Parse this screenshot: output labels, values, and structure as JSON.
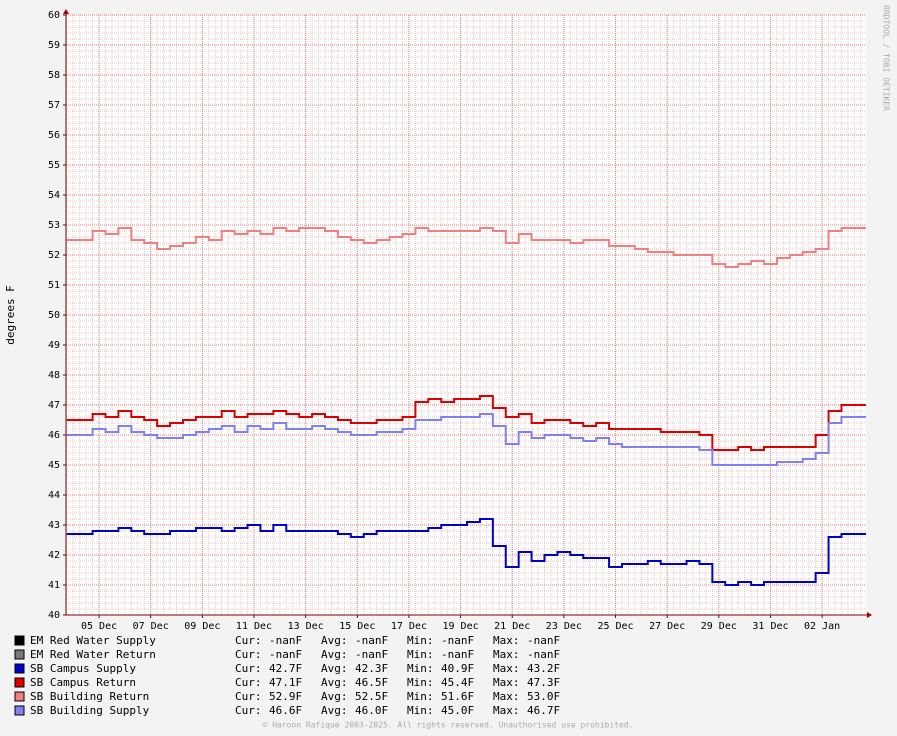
{
  "chart_data": {
    "type": "step-line",
    "y_label": "degrees F",
    "side_label": "RRDTOOL / TOBI OETIKER",
    "footer": "© Haroon Rafique 2003-2025. All rights reserved. Unauthorised use prohibited.",
    "xlim": [
      3.72,
      34.7
    ],
    "ylim": [
      40,
      60
    ],
    "yticks": [
      40,
      41,
      42,
      43,
      44,
      45,
      46,
      47,
      48,
      49,
      50,
      51,
      52,
      53,
      54,
      55,
      56,
      57,
      58,
      59,
      60
    ],
    "xticks": [
      {
        "value": 5,
        "label": "05 Dec"
      },
      {
        "value": 7,
        "label": "07 Dec"
      },
      {
        "value": 9,
        "label": "09 Dec"
      },
      {
        "value": 11,
        "label": "11 Dec"
      },
      {
        "value": 13,
        "label": "13 Dec"
      },
      {
        "value": 15,
        "label": "15 Dec"
      },
      {
        "value": 17,
        "label": "17 Dec"
      },
      {
        "value": 19,
        "label": "19 Dec"
      },
      {
        "value": 21,
        "label": "21 Dec"
      },
      {
        "value": 23,
        "label": "23 Dec"
      },
      {
        "value": 25,
        "label": "25 Dec"
      },
      {
        "value": 27,
        "label": "27 Dec"
      },
      {
        "value": 29,
        "label": "29 Dec"
      },
      {
        "value": 31,
        "label": "31 Dec"
      },
      {
        "value": 33,
        "label": "02 Jan"
      }
    ],
    "grid": true,
    "stats_labels": [
      "Cur:",
      "Avg:",
      "Min:",
      "Max:"
    ],
    "x": [
      3.75,
      4.25,
      4.75,
      5.25,
      5.75,
      6.25,
      6.75,
      7.25,
      7.75,
      8.25,
      8.75,
      9.25,
      9.75,
      10.25,
      10.75,
      11.25,
      11.75,
      12.25,
      12.75,
      13.25,
      13.75,
      14.25,
      14.75,
      15.25,
      15.75,
      16.25,
      16.75,
      17.25,
      17.75,
      18.25,
      18.75,
      19.25,
      19.75,
      20.25,
      20.75,
      21.25,
      21.75,
      22.25,
      22.75,
      23.25,
      23.75,
      24.25,
      24.75,
      25.25,
      25.75,
      26.25,
      26.75,
      27.25,
      27.75,
      28.25,
      28.75,
      29.25,
      29.75,
      30.25,
      30.75,
      31.25,
      31.75,
      32.25,
      32.75,
      33.25,
      33.75,
      34.25
    ],
    "series": [
      {
        "name": "EM Red Water Supply",
        "color": "#000000",
        "stats": [
          "-nanF",
          "-nanF",
          "-nanF",
          "-nanF"
        ],
        "values": [
          null,
          null,
          null,
          null,
          null,
          null,
          null,
          null,
          null,
          null,
          null,
          null,
          null,
          null,
          null,
          null,
          null,
          null,
          null,
          null,
          null,
          null,
          null,
          null,
          null,
          null,
          null,
          null,
          null,
          null,
          null,
          null,
          null,
          null,
          null,
          null,
          null,
          null,
          null,
          null,
          null,
          null,
          null,
          null,
          null,
          null,
          null,
          null,
          null,
          null,
          null,
          null,
          null,
          null,
          null,
          null,
          null,
          null,
          null,
          null,
          null,
          null
        ]
      },
      {
        "name": "EM Red Water Return",
        "color": "#777777",
        "stats": [
          "-nanF",
          "-nanF",
          "-nanF",
          "-nanF"
        ],
        "values": [
          null,
          null,
          null,
          null,
          null,
          null,
          null,
          null,
          null,
          null,
          null,
          null,
          null,
          null,
          null,
          null,
          null,
          null,
          null,
          null,
          null,
          null,
          null,
          null,
          null,
          null,
          null,
          null,
          null,
          null,
          null,
          null,
          null,
          null,
          null,
          null,
          null,
          null,
          null,
          null,
          null,
          null,
          null,
          null,
          null,
          null,
          null,
          null,
          null,
          null,
          null,
          null,
          null,
          null,
          null,
          null,
          null,
          null,
          null,
          null,
          null,
          null
        ]
      },
      {
        "name": "SB Campus Supply",
        "color": "#0000cc",
        "stats": [
          "42.7F",
          "42.3F",
          "40.9F",
          "43.2F"
        ],
        "values": [
          42.7,
          42.7,
          42.8,
          42.8,
          42.9,
          42.8,
          42.7,
          42.7,
          42.8,
          42.8,
          42.9,
          42.9,
          42.8,
          42.9,
          43.0,
          42.8,
          43.0,
          42.8,
          42.8,
          42.8,
          42.8,
          42.7,
          42.6,
          42.7,
          42.8,
          42.8,
          42.8,
          42.8,
          42.9,
          43.0,
          43.0,
          43.1,
          43.2,
          42.3,
          41.6,
          42.1,
          41.8,
          42.0,
          42.1,
          42.0,
          41.9,
          41.9,
          41.6,
          41.7,
          41.7,
          41.8,
          41.7,
          41.7,
          41.8,
          41.7,
          41.1,
          41.0,
          41.1,
          41.0,
          41.1,
          41.1,
          41.1,
          41.1,
          41.4,
          42.6,
          42.7,
          42.7
        ]
      },
      {
        "name": "SB Campus Return",
        "color": "#dd0000",
        "stats": [
          "47.1F",
          "46.5F",
          "45.4F",
          "47.3F"
        ],
        "values": [
          46.5,
          46.5,
          46.7,
          46.6,
          46.8,
          46.6,
          46.5,
          46.3,
          46.4,
          46.5,
          46.6,
          46.6,
          46.8,
          46.6,
          46.7,
          46.7,
          46.8,
          46.7,
          46.6,
          46.7,
          46.6,
          46.5,
          46.4,
          46.4,
          46.5,
          46.5,
          46.6,
          47.1,
          47.2,
          47.1,
          47.2,
          47.2,
          47.3,
          46.9,
          46.6,
          46.7,
          46.4,
          46.5,
          46.5,
          46.4,
          46.3,
          46.4,
          46.2,
          46.2,
          46.2,
          46.2,
          46.1,
          46.1,
          46.1,
          46.0,
          45.5,
          45.5,
          45.6,
          45.5,
          45.6,
          45.6,
          45.6,
          45.6,
          46.0,
          46.8,
          47.0,
          47.0
        ]
      },
      {
        "name": "SB Building Return",
        "color": "#f08080",
        "stats": [
          "52.9F",
          "52.5F",
          "51.6F",
          "53.0F"
        ],
        "values": [
          52.5,
          52.5,
          52.8,
          52.7,
          52.9,
          52.5,
          52.4,
          52.2,
          52.3,
          52.4,
          52.6,
          52.5,
          52.8,
          52.7,
          52.8,
          52.7,
          52.9,
          52.8,
          52.9,
          52.9,
          52.8,
          52.6,
          52.5,
          52.4,
          52.5,
          52.6,
          52.7,
          52.9,
          52.8,
          52.8,
          52.8,
          52.8,
          52.9,
          52.8,
          52.4,
          52.7,
          52.5,
          52.5,
          52.5,
          52.4,
          52.5,
          52.5,
          52.3,
          52.3,
          52.2,
          52.1,
          52.1,
          52.0,
          52.0,
          52.0,
          51.7,
          51.6,
          51.7,
          51.8,
          51.7,
          51.9,
          52.0,
          52.1,
          52.2,
          52.8,
          52.9,
          52.9
        ]
      },
      {
        "name": "SB Building Supply",
        "color": "#8080ee",
        "stats": [
          "46.6F",
          "46.0F",
          "45.0F",
          "46.7F"
        ],
        "values": [
          46.0,
          46.0,
          46.2,
          46.1,
          46.3,
          46.1,
          46.0,
          45.9,
          45.9,
          46.0,
          46.1,
          46.2,
          46.3,
          46.1,
          46.3,
          46.2,
          46.4,
          46.2,
          46.2,
          46.3,
          46.2,
          46.1,
          46.0,
          46.0,
          46.1,
          46.1,
          46.2,
          46.5,
          46.5,
          46.6,
          46.6,
          46.6,
          46.7,
          46.3,
          45.7,
          46.1,
          45.9,
          46.0,
          46.0,
          45.9,
          45.8,
          45.9,
          45.7,
          45.6,
          45.6,
          45.6,
          45.6,
          45.6,
          45.6,
          45.5,
          45.0,
          45.0,
          45.0,
          45.0,
          45.0,
          45.1,
          45.1,
          45.2,
          45.4,
          46.4,
          46.6,
          46.6
        ]
      }
    ]
  }
}
